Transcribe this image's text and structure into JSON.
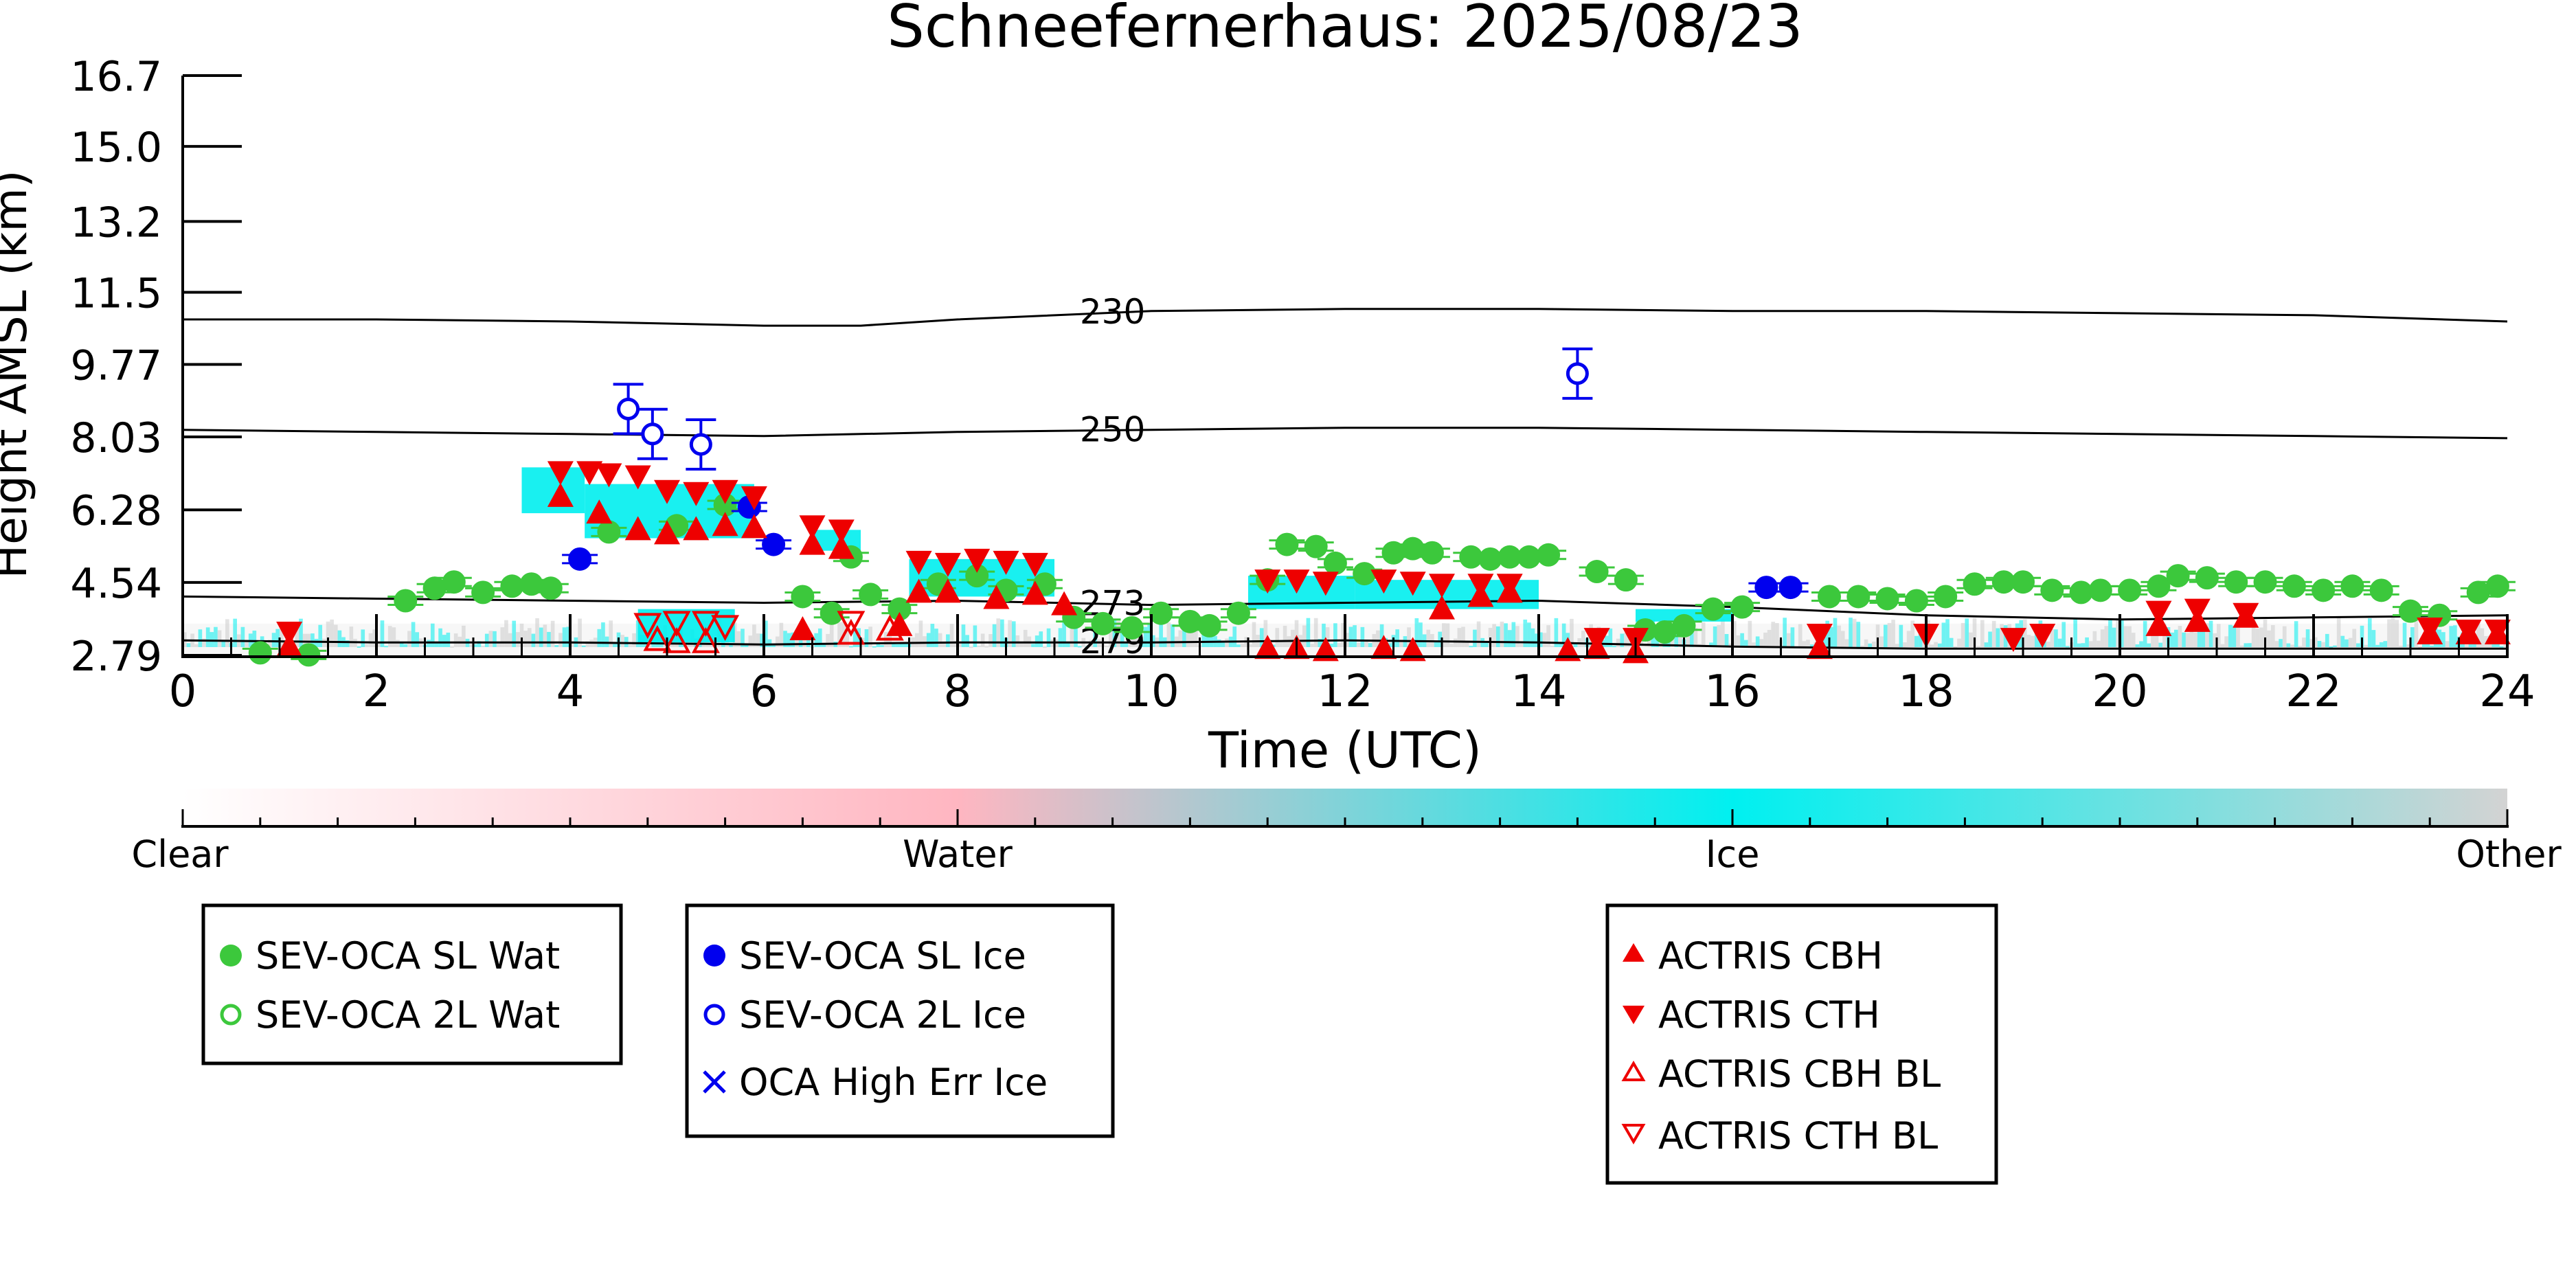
{
  "chart_data": {
    "type": "scatter",
    "title": "Schneefernerhaus: 2025/08/23",
    "xlabel": "Time (UTC)",
    "ylabel": "Height AMSL (km)",
    "xlim": [
      0,
      24
    ],
    "ylim": [
      2.79,
      16.7
    ],
    "x_ticks": [
      "0",
      "2",
      "4",
      "6",
      "8",
      "10",
      "12",
      "14",
      "16",
      "18",
      "20",
      "22",
      "24"
    ],
    "y_ticks": [
      "2.79",
      "4.54",
      "6.28",
      "8.03",
      "9.77",
      "11.5",
      "13.2",
      "15.0",
      "16.7"
    ],
    "colors": {
      "sl_water": "#3cc83c",
      "ice": "#0000ee",
      "actris": "#ee0000",
      "ice_mask": "#00eeee",
      "other_mask": "#cccccc",
      "water_mask": "#ffb6c1"
    },
    "colorbar": {
      "labels": [
        "Clear",
        "Water",
        "Ice",
        "Other"
      ],
      "stops": [
        "#ffffff",
        "#ffb6c1",
        "#00f0f0",
        "#d3d3d3"
      ]
    },
    "isotherms": [
      {
        "label": "230",
        "x": [
          0,
          2,
          4,
          6,
          7,
          8,
          10,
          12,
          14,
          16,
          18,
          20,
          22,
          24
        ],
        "y": [
          10.85,
          10.85,
          10.8,
          10.7,
          10.7,
          10.85,
          11.05,
          11.1,
          11.1,
          11.05,
          11.05,
          11.0,
          10.95,
          10.8
        ]
      },
      {
        "label": "250",
        "x": [
          0,
          2,
          4,
          6,
          8,
          10,
          12,
          14,
          16,
          18,
          20,
          22,
          24
        ],
        "y": [
          8.2,
          8.15,
          8.1,
          8.05,
          8.15,
          8.2,
          8.25,
          8.25,
          8.2,
          8.15,
          8.1,
          8.05,
          8.0
        ]
      },
      {
        "label": "273",
        "x": [
          0,
          2,
          4,
          6,
          8,
          10,
          12,
          14,
          16,
          18,
          20,
          22,
          24
        ],
        "y": [
          4.2,
          4.15,
          4.1,
          4.05,
          4.1,
          4.0,
          4.05,
          4.1,
          3.95,
          3.75,
          3.65,
          3.7,
          3.75
        ]
      },
      {
        "label": "279",
        "x": [
          0,
          2,
          4,
          6,
          8,
          10,
          12,
          14,
          16,
          18,
          20,
          22,
          24
        ],
        "y": [
          3.15,
          3.1,
          3.1,
          3.05,
          3.1,
          3.1,
          3.15,
          3.1,
          3.0,
          2.95,
          2.95,
          2.95,
          2.95
        ]
      }
    ],
    "series": [
      {
        "name": "SEV-OCA SL Wat",
        "points": [
          [
            0.8,
            2.85
          ],
          [
            1.3,
            2.8
          ],
          [
            2.3,
            4.1
          ],
          [
            2.6,
            4.4
          ],
          [
            2.8,
            4.55
          ],
          [
            3.1,
            4.3
          ],
          [
            3.4,
            4.45
          ],
          [
            3.6,
            4.5
          ],
          [
            3.8,
            4.4
          ],
          [
            4.4,
            5.75
          ],
          [
            5.1,
            5.9
          ],
          [
            5.6,
            6.4
          ],
          [
            6.4,
            4.2
          ],
          [
            6.7,
            3.8
          ],
          [
            6.9,
            5.15
          ],
          [
            7.1,
            4.25
          ],
          [
            7.4,
            3.9
          ],
          [
            7.8,
            4.5
          ],
          [
            8.2,
            4.7
          ],
          [
            8.5,
            4.35
          ],
          [
            8.9,
            4.5
          ],
          [
            9.2,
            3.7
          ],
          [
            9.5,
            3.55
          ],
          [
            9.8,
            3.45
          ],
          [
            10.1,
            3.8
          ],
          [
            10.4,
            3.6
          ],
          [
            10.6,
            3.5
          ],
          [
            10.9,
            3.8
          ],
          [
            11.2,
            4.6
          ],
          [
            11.4,
            5.45
          ],
          [
            11.7,
            5.4
          ],
          [
            11.9,
            5.0
          ],
          [
            12.2,
            4.75
          ],
          [
            12.5,
            5.25
          ],
          [
            12.7,
            5.35
          ],
          [
            12.9,
            5.25
          ],
          [
            13.3,
            5.15
          ],
          [
            13.5,
            5.1
          ],
          [
            13.7,
            5.15
          ],
          [
            13.9,
            5.15
          ],
          [
            14.1,
            5.2
          ],
          [
            14.6,
            4.8
          ],
          [
            14.9,
            4.6
          ],
          [
            15.1,
            3.4
          ],
          [
            15.3,
            3.35
          ],
          [
            15.5,
            3.5
          ],
          [
            15.8,
            3.9
          ],
          [
            16.1,
            3.95
          ],
          [
            17.0,
            4.2
          ],
          [
            17.3,
            4.2
          ],
          [
            17.6,
            4.15
          ],
          [
            17.9,
            4.1
          ],
          [
            18.2,
            4.2
          ],
          [
            18.5,
            4.5
          ],
          [
            18.8,
            4.55
          ],
          [
            19.0,
            4.55
          ],
          [
            19.3,
            4.35
          ],
          [
            19.6,
            4.3
          ],
          [
            19.8,
            4.35
          ],
          [
            20.1,
            4.35
          ],
          [
            20.4,
            4.45
          ],
          [
            20.6,
            4.7
          ],
          [
            20.9,
            4.65
          ],
          [
            21.2,
            4.55
          ],
          [
            21.5,
            4.55
          ],
          [
            21.8,
            4.45
          ],
          [
            22.1,
            4.35
          ],
          [
            22.4,
            4.45
          ],
          [
            22.7,
            4.35
          ],
          [
            23.0,
            3.85
          ],
          [
            23.3,
            3.75
          ],
          [
            23.7,
            4.3
          ],
          [
            23.9,
            4.45
          ]
        ]
      },
      {
        "name": "SEV-OCA 2L Wat",
        "points": []
      },
      {
        "name": "SEV-OCA SL Ice",
        "points": [
          [
            4.1,
            5.1
          ],
          [
            5.85,
            6.35
          ],
          [
            6.1,
            5.45
          ],
          [
            16.35,
            4.42
          ],
          [
            16.6,
            4.42
          ]
        ]
      },
      {
        "name": "SEV-OCA 2L Ice",
        "points": [
          [
            4.6,
            8.7
          ],
          [
            4.85,
            8.1
          ],
          [
            5.35,
            7.85
          ],
          [
            14.4,
            9.55
          ]
        ]
      },
      {
        "name": "OCA High Err Ice",
        "points": []
      },
      {
        "name": "ACTRIS CBH",
        "points": [
          [
            3.9,
            6.6
          ],
          [
            4.3,
            6.2
          ],
          [
            4.7,
            5.8
          ],
          [
            5.0,
            5.7
          ],
          [
            5.3,
            5.8
          ],
          [
            5.6,
            5.9
          ],
          [
            5.9,
            5.85
          ],
          [
            6.5,
            5.45
          ],
          [
            6.8,
            5.35
          ],
          [
            7.6,
            4.3
          ],
          [
            7.9,
            4.3
          ],
          [
            8.4,
            4.15
          ],
          [
            8.8,
            4.25
          ],
          [
            9.1,
            4.0
          ],
          [
            11.2,
            2.95
          ],
          [
            11.5,
            2.95
          ],
          [
            11.8,
            2.9
          ],
          [
            12.4,
            2.95
          ],
          [
            12.7,
            2.9
          ],
          [
            13.0,
            3.9
          ],
          [
            13.4,
            4.2
          ],
          [
            13.7,
            4.3
          ],
          [
            14.3,
            2.9
          ],
          [
            14.6,
            2.95
          ],
          [
            15.0,
            2.85
          ],
          [
            16.9,
            2.95
          ],
          [
            20.4,
            3.5
          ],
          [
            20.8,
            3.6
          ],
          [
            21.3,
            3.7
          ],
          [
            23.2,
            3.3
          ],
          [
            23.6,
            3.3
          ],
          [
            23.9,
            3.3
          ],
          [
            1.1,
            3.0
          ],
          [
            6.4,
            3.4
          ],
          [
            7.4,
            3.5
          ]
        ]
      },
      {
        "name": "ACTRIS CTH",
        "points": [
          [
            3.9,
            7.2
          ],
          [
            4.2,
            7.2
          ],
          [
            4.4,
            7.15
          ],
          [
            4.7,
            7.1
          ],
          [
            5.0,
            6.75
          ],
          [
            5.3,
            6.7
          ],
          [
            5.6,
            6.75
          ],
          [
            5.9,
            6.6
          ],
          [
            6.5,
            5.9
          ],
          [
            6.8,
            5.8
          ],
          [
            7.6,
            5.05
          ],
          [
            7.9,
            5.0
          ],
          [
            8.2,
            5.1
          ],
          [
            8.5,
            5.05
          ],
          [
            8.8,
            5.0
          ],
          [
            11.2,
            4.6
          ],
          [
            11.5,
            4.6
          ],
          [
            11.8,
            4.55
          ],
          [
            12.4,
            4.6
          ],
          [
            12.7,
            4.55
          ],
          [
            13.0,
            4.5
          ],
          [
            13.4,
            4.5
          ],
          [
            13.7,
            4.5
          ],
          [
            14.6,
            3.2
          ],
          [
            15.0,
            3.2
          ],
          [
            16.9,
            3.3
          ],
          [
            18.0,
            3.3
          ],
          [
            18.9,
            3.2
          ],
          [
            19.2,
            3.3
          ],
          [
            20.4,
            3.85
          ],
          [
            20.8,
            3.9
          ],
          [
            21.3,
            3.8
          ],
          [
            23.2,
            3.45
          ],
          [
            23.6,
            3.4
          ],
          [
            23.9,
            3.4
          ],
          [
            1.1,
            3.35
          ]
        ]
      },
      {
        "name": "ACTRIS CBH BL",
        "points": [
          [
            4.9,
            3.15
          ],
          [
            5.1,
            3.1
          ],
          [
            5.4,
            3.1
          ],
          [
            6.9,
            3.3
          ],
          [
            7.3,
            3.4
          ]
        ]
      },
      {
        "name": "ACTRIS CTH BL",
        "points": [
          [
            4.8,
            3.55
          ],
          [
            5.1,
            3.6
          ],
          [
            5.4,
            3.6
          ],
          [
            5.6,
            3.5
          ],
          [
            6.9,
            3.6
          ]
        ]
      }
    ],
    "legend": {
      "group1": [
        "SEV-OCA SL Wat",
        "SEV-OCA 2L Wat"
      ],
      "group2": [
        "SEV-OCA SL Ice",
        "SEV-OCA 2L Ice",
        "OCA High Err Ice"
      ],
      "group3": [
        "ACTRIS CBH",
        "ACTRIS CTH",
        "ACTRIS CBH BL",
        "ACTRIS CTH BL"
      ],
      "placement": "below"
    },
    "grid": false
  }
}
